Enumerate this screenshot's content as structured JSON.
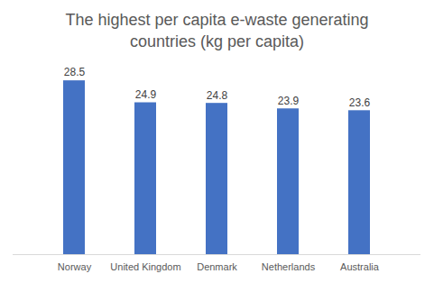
{
  "chart_data": {
    "type": "bar",
    "title": "The highest per capita e-waste generating countries (kg per capita)",
    "categories": [
      "Norway",
      "United Kingdom",
      "Denmark",
      "Netherlands",
      "Australia"
    ],
    "values": [
      28.5,
      24.9,
      24.8,
      23.9,
      23.6
    ],
    "color": "#4472c4",
    "ylim": [
      0,
      30
    ],
    "grid": false,
    "data_labels": true,
    "tick_labels": "x"
  }
}
